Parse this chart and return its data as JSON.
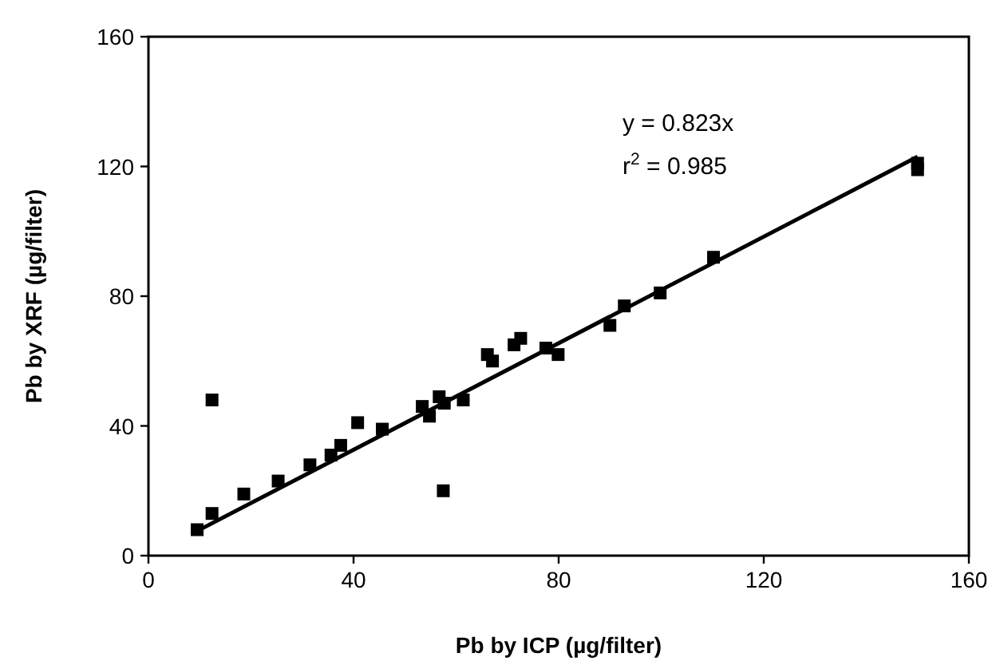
{
  "chart_data": {
    "type": "scatter",
    "xlabel": "Pb by ICP (µg/filter)",
    "ylabel": "Pb by XRF (µg/filter)",
    "xlim": [
      0,
      160
    ],
    "ylim": [
      0,
      160
    ],
    "xticks": [
      0,
      40,
      80,
      120,
      160
    ],
    "yticks": [
      0,
      40,
      80,
      120,
      160
    ],
    "grid": false,
    "annotations": [
      "y = 0.823x",
      "r$^{2}$ = 0.985"
    ],
    "series": [
      {
        "color": "#000000",
        "marker": "square",
        "x": [
          9.5,
          12.4,
          12.4,
          18.6,
          25.3,
          31.5,
          35.6,
          37.5,
          40.8,
          45.6,
          53.4,
          54.8,
          56.7,
          57.7,
          57.5,
          61.4,
          66.1,
          67.1,
          71.3,
          72.6,
          77.5,
          79.9,
          90,
          92.8,
          99.8,
          110.2,
          150,
          150
        ],
        "values": [
          8,
          48,
          13,
          19,
          23,
          28,
          31,
          34,
          41,
          39,
          46,
          43,
          49,
          47,
          20,
          48,
          62,
          60,
          65,
          67,
          64,
          62,
          71,
          77,
          81,
          92,
          121,
          119
        ]
      },
      {
        "type": "line",
        "color": "#000000",
        "marker": "none",
        "line_style": "solid",
        "x": [
          10,
          150
        ],
        "values": [
          8,
          123
        ]
      }
    ]
  }
}
